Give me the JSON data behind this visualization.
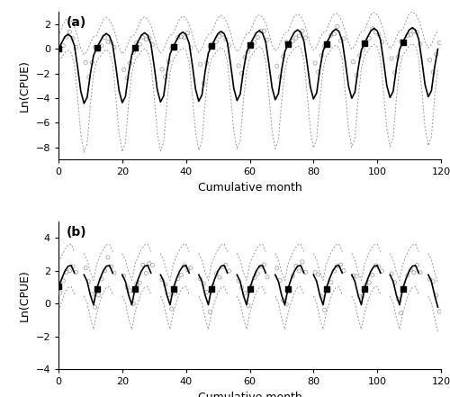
{
  "panel_a": {
    "label": "(a)",
    "ylabel": "Ln(CPUE)",
    "xlabel": "Cumulative month",
    "xlim": [
      0,
      120
    ],
    "ylim": [
      -9,
      3
    ],
    "yticks": [
      -8,
      -6,
      -4,
      -2,
      0,
      2
    ],
    "xticks": [
      0,
      20,
      40,
      60,
      80,
      100,
      120
    ]
  },
  "panel_b": {
    "label": "(b)",
    "ylabel": "Ln(CPUE)",
    "xlabel": "Cumulative month",
    "xlim": [
      0,
      120
    ],
    "ylim": [
      -4,
      5
    ],
    "yticks": [
      -4,
      -2,
      0,
      2,
      4
    ],
    "xticks": [
      0,
      20,
      40,
      60,
      80,
      100,
      120
    ]
  },
  "line_color": "#000000",
  "ci_color": "#999999",
  "obs_color": "#999999",
  "black_dot_color": "#000000",
  "background_color": "#ffffff",
  "fontsize_label": 9,
  "fontsize_tick": 8,
  "fontsize_panel": 10
}
